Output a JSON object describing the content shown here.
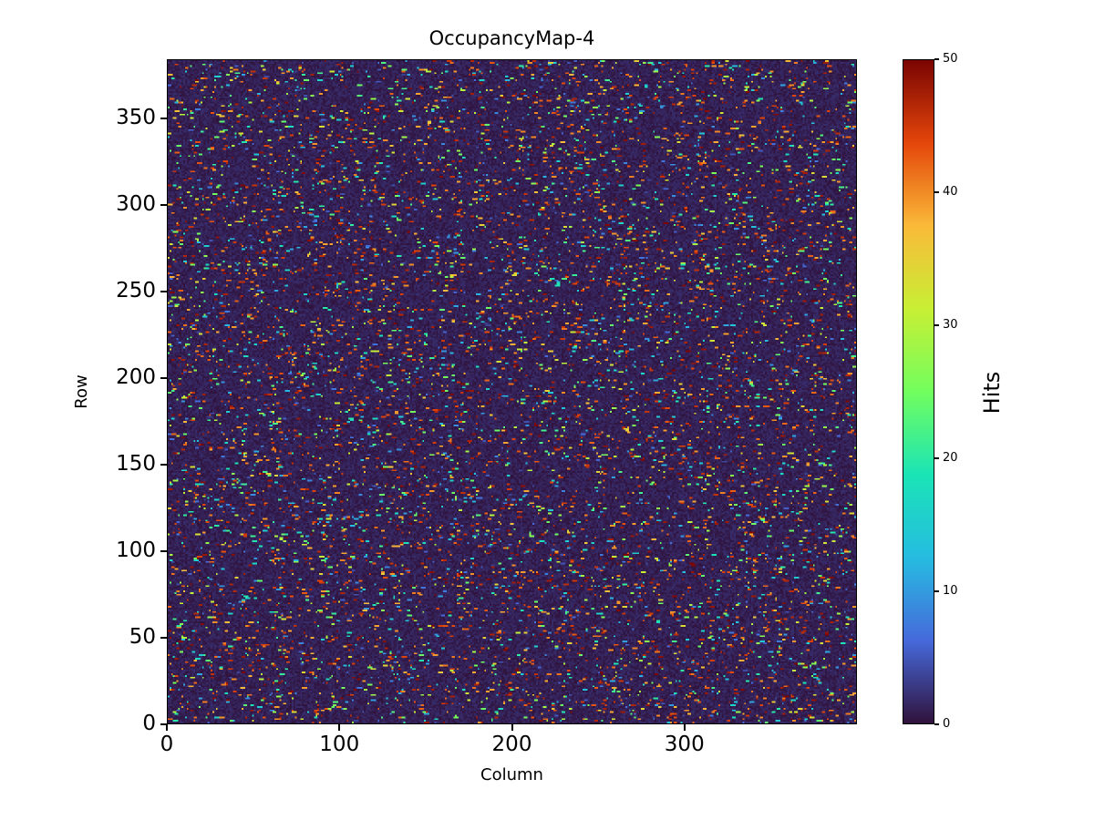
{
  "chart_data": {
    "type": "heatmap",
    "title": "OccupancyMap-4",
    "xlabel": "Column",
    "ylabel": "Row",
    "colorbar_label": "Hits",
    "x_range": [
      0,
      400
    ],
    "y_range": [
      0,
      384
    ],
    "x_ticks": [
      0,
      100,
      200,
      300
    ],
    "y_ticks": [
      0,
      50,
      100,
      150,
      200,
      250,
      300,
      350
    ],
    "colorbar_ticks": [
      0,
      10,
      20,
      30,
      40,
      50
    ],
    "value_range": [
      0,
      50
    ],
    "grid": {
      "cols": 400,
      "rows": 384
    },
    "legend_position": "right-colorbar",
    "grid_lines": false,
    "colormap": {
      "name": "turbo",
      "stops": [
        {
          "t": 0.0,
          "rgb": [
            48,
            18,
            59
          ]
        },
        {
          "t": 0.125,
          "rgb": [
            70,
            105,
            219
          ]
        },
        {
          "t": 0.25,
          "rgb": [
            38,
            188,
            225
          ]
        },
        {
          "t": 0.375,
          "rgb": [
            26,
            228,
            182
          ]
        },
        {
          "t": 0.5,
          "rgb": [
            114,
            254,
            94
          ]
        },
        {
          "t": 0.625,
          "rgb": [
            200,
            239,
            52
          ]
        },
        {
          "t": 0.75,
          "rgb": [
            250,
            186,
            57
          ]
        },
        {
          "t": 0.875,
          "rgb": [
            228,
            70,
            10
          ]
        },
        {
          "t": 1.0,
          "rgb": [
            122,
            4,
            3
          ]
        }
      ]
    },
    "pattern": {
      "description": "sparse random occupancy: mostly near-zero dark background with scattered short horizontal hit dashes, dominated by high values (red) plus fewer mid/low (yellow/green/cyan/blue)",
      "seed": 4,
      "background_max": 2.0,
      "hit_probability": 0.055,
      "run_extend_probability": 0.5,
      "high_fraction": 0.52,
      "mid_fraction": 0.16
    }
  }
}
